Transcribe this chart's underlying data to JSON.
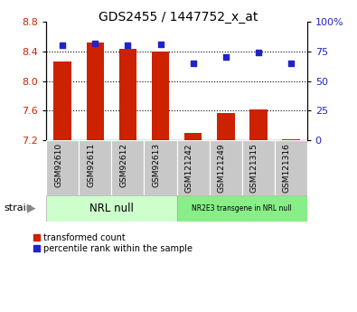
{
  "title": "GDS2455 / 1447752_x_at",
  "categories": [
    "GSM92610",
    "GSM92611",
    "GSM92612",
    "GSM92613",
    "GSM121242",
    "GSM121249",
    "GSM121315",
    "GSM121316"
  ],
  "bar_values": [
    8.27,
    8.52,
    8.43,
    8.4,
    7.3,
    7.57,
    7.62,
    7.22
  ],
  "scatter_values": [
    80,
    82,
    80,
    81,
    65,
    70,
    74,
    65
  ],
  "bar_color": "#cc2200",
  "scatter_color": "#2222cc",
  "ylim_left": [
    7.2,
    8.8
  ],
  "ylim_right": [
    0,
    100
  ],
  "yticks_left": [
    7.2,
    7.6,
    8.0,
    8.4,
    8.8
  ],
  "yticks_right": [
    0,
    25,
    50,
    75,
    100
  ],
  "ytick_labels_right": [
    "0",
    "25",
    "50",
    "75",
    "100%"
  ],
  "group1_label": "NRL null",
  "group2_label": "NR2E3 transgene in NRL null",
  "group1_color": "#ccffcc",
  "group2_color": "#88ee88",
  "group1_indices": [
    0,
    1,
    2,
    3
  ],
  "group2_indices": [
    4,
    5,
    6,
    7
  ],
  "xlabel_label": "strain",
  "legend_red": "transformed count",
  "legend_blue": "percentile rank within the sample",
  "bar_bottom": 7.2,
  "dotted_grid_values": [
    7.6,
    8.0,
    8.4
  ],
  "tick_label_color_left": "#cc2200",
  "tick_label_color_right": "#2222cc",
  "xtick_bg_color": "#c8c8c8",
  "bar_width": 0.55
}
